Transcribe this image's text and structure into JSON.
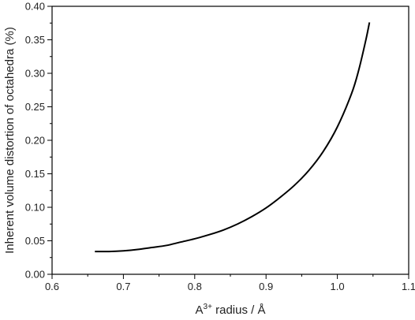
{
  "chart_data": {
    "type": "line",
    "title": "",
    "xlabel_main": "A",
    "xlabel_sup": "3+",
    "xlabel_rest": " radius / Å",
    "ylabel": "Inherent volume distortion of octahedra (%)",
    "xlim": [
      0.6,
      1.1
    ],
    "ylim": [
      0.0,
      0.4
    ],
    "x_ticks": [
      "0.6",
      "0.7",
      "0.8",
      "0.9",
      "1.0",
      "1.1"
    ],
    "y_ticks": [
      "0.00",
      "0.05",
      "0.10",
      "0.15",
      "0.20",
      "0.25",
      "0.30",
      "0.35",
      "0.40"
    ],
    "grid": false,
    "series": [
      {
        "color": "#000000",
        "x": [
          0.66,
          0.68,
          0.7,
          0.72,
          0.74,
          0.76,
          0.78,
          0.8,
          0.82,
          0.84,
          0.86,
          0.88,
          0.9,
          0.92,
          0.94,
          0.96,
          0.98,
          1.0,
          1.02,
          1.03,
          1.04,
          1.045
        ],
        "y": [
          0.034,
          0.034,
          0.035,
          0.037,
          0.04,
          0.043,
          0.048,
          0.053,
          0.059,
          0.066,
          0.075,
          0.086,
          0.099,
          0.115,
          0.133,
          0.155,
          0.183,
          0.22,
          0.27,
          0.305,
          0.35,
          0.376
        ]
      }
    ]
  }
}
